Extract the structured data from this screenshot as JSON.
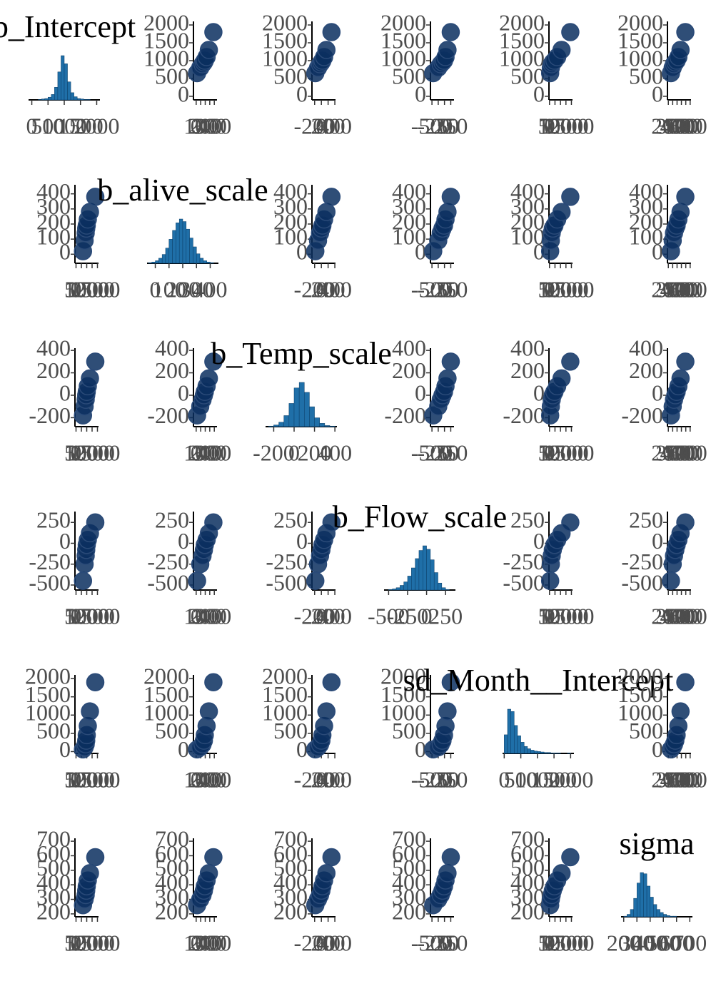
{
  "chart_data": {
    "type": "pairs",
    "point_color": "#0b2f5f",
    "hist_color": "#1f6fa8",
    "variables": [
      {
        "name": "b_Intercept",
        "lim": [
          -100,
          2100
        ],
        "ticks": [
          0,
          500,
          1000,
          1500,
          2000
        ],
        "samples": [
          650,
          800,
          900,
          950,
          1000,
          1100,
          1300,
          1800
        ],
        "bins": [
          0,
          100,
          200,
          300,
          400,
          500,
          600,
          700,
          800,
          900,
          1000,
          1100,
          1200,
          1300,
          1400,
          1500,
          1600,
          1700,
          1800,
          1900,
          2000
        ],
        "counts": [
          0,
          0,
          1,
          2,
          3,
          6,
          12,
          28,
          62,
          98,
          80,
          40,
          16,
          7,
          3,
          2,
          1,
          1,
          0,
          0
        ]
      },
      {
        "name": "b_alive_scale",
        "lim": [
          -60,
          460
        ],
        "ticks": [
          0,
          100,
          200,
          300,
          400
        ],
        "samples": [
          20,
          90,
          140,
          170,
          190,
          230,
          280,
          380
        ],
        "bins": [
          -50,
          -25,
          0,
          25,
          50,
          75,
          100,
          125,
          150,
          175,
          200,
          225,
          250,
          275,
          300,
          325,
          350,
          375,
          400,
          425,
          450
        ],
        "counts": [
          1,
          2,
          4,
          8,
          14,
          24,
          38,
          52,
          64,
          70,
          66,
          54,
          40,
          26,
          15,
          8,
          4,
          2,
          1,
          0
        ]
      },
      {
        "name": "b_Temp_scale",
        "lim": [
          -280,
          420
        ],
        "ticks": [
          -200,
          0,
          200,
          400
        ],
        "samples": [
          -180,
          -100,
          -40,
          0,
          30,
          80,
          150,
          300
        ],
        "bins": [
          -250,
          -200,
          -150,
          -100,
          -50,
          0,
          50,
          100,
          150,
          200,
          250,
          300,
          350,
          400
        ],
        "counts": [
          1,
          3,
          8,
          20,
          42,
          70,
          80,
          62,
          36,
          16,
          6,
          2,
          1
        ]
      },
      {
        "name": "b_Flow_scale",
        "lim": [
          -560,
          380
        ],
        "ticks": [
          -500,
          -250,
          0,
          250
        ],
        "samples": [
          -450,
          -250,
          -150,
          -80,
          -20,
          40,
          120,
          250
        ],
        "bins": [
          -500,
          -450,
          -400,
          -350,
          -300,
          -250,
          -200,
          -150,
          -100,
          -50,
          0,
          50,
          100,
          150,
          200,
          250,
          300
        ],
        "counts": [
          1,
          2,
          4,
          8,
          14,
          24,
          38,
          54,
          68,
          76,
          70,
          52,
          30,
          12,
          4,
          1
        ]
      },
      {
        "name": "sd_Month__Intercept",
        "lim": [
          -50,
          2100
        ],
        "ticks": [
          0,
          500,
          1000,
          1500,
          2000
        ],
        "samples": [
          60,
          120,
          200,
          300,
          450,
          700,
          1100,
          1900
        ],
        "bins": [
          0,
          100,
          200,
          300,
          400,
          500,
          600,
          700,
          800,
          900,
          1000,
          1100,
          1200,
          1300,
          1400,
          1500,
          1600,
          1700,
          1800,
          1900,
          2000
        ],
        "counts": [
          40,
          95,
          90,
          60,
          38,
          24,
          15,
          10,
          7,
          5,
          4,
          3,
          2,
          2,
          1,
          1,
          1,
          0,
          0,
          1
        ]
      },
      {
        "name": "sigma",
        "lim": [
          180,
          720
        ],
        "ticks": [
          200,
          300,
          400,
          500,
          600,
          700
        ],
        "samples": [
          260,
          300,
          330,
          360,
          390,
          430,
          480,
          590
        ],
        "bins": [
          200,
          225,
          250,
          275,
          300,
          325,
          350,
          375,
          400,
          425,
          450,
          475,
          500,
          525,
          550,
          575,
          600,
          625,
          650,
          675,
          700
        ],
        "counts": [
          1,
          4,
          12,
          30,
          55,
          72,
          70,
          50,
          32,
          20,
          12,
          7,
          4,
          2,
          1,
          1,
          0,
          0,
          0,
          0
        ]
      }
    ]
  }
}
